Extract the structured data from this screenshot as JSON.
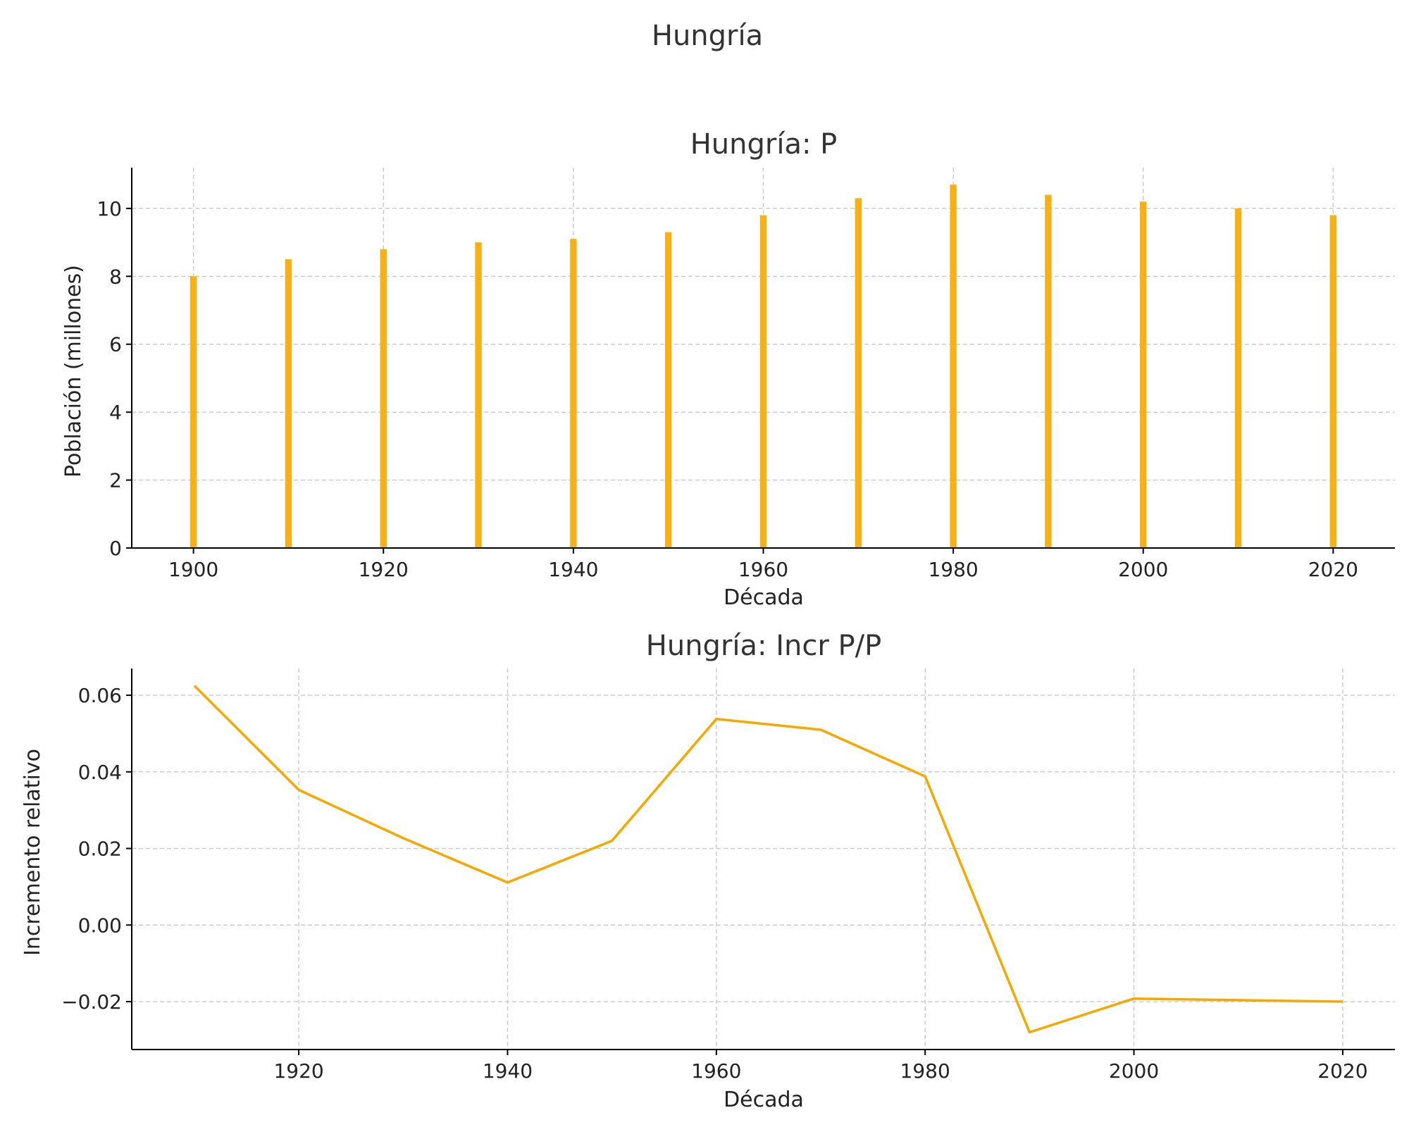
{
  "figure": {
    "suptitle": "Hungría"
  },
  "colors": {
    "series": "#f7b118",
    "line": "#f5a800",
    "grid": "#c8c8c8",
    "axis": "#000000",
    "text": "#333333"
  },
  "chart_data": [
    {
      "type": "bar",
      "title": "Hungría: P",
      "xlabel": "Década",
      "ylabel": "Población (millones)",
      "x": [
        1900,
        1910,
        1920,
        1930,
        1940,
        1950,
        1960,
        1970,
        1980,
        1990,
        2000,
        2010,
        2020
      ],
      "values": [
        8.0,
        8.5,
        8.8,
        9.0,
        9.1,
        9.3,
        9.8,
        10.3,
        10.7,
        10.4,
        10.2,
        10.0,
        9.8
      ],
      "xlim": [
        1893.5,
        2026.5
      ],
      "ylim": [
        0,
        11.2
      ],
      "xticks": [
        1900,
        1920,
        1940,
        1960,
        1980,
        2000,
        2020
      ],
      "yticks": [
        0,
        2,
        4,
        6,
        8,
        10
      ],
      "ytick_labels": [
        "0",
        "2",
        "4",
        "6",
        "8",
        "10"
      ],
      "grid": true
    },
    {
      "type": "line",
      "title": "Hungría: Incr P/P",
      "xlabel": "Década",
      "ylabel": "Incremento relativo",
      "x": [
        1910,
        1920,
        1930,
        1940,
        1950,
        1960,
        1970,
        1980,
        1990,
        2000,
        2010,
        2020
      ],
      "values": [
        0.0625,
        0.0353,
        0.0227,
        0.0111,
        0.022,
        0.0538,
        0.051,
        0.0388,
        -0.028,
        -0.0192,
        -0.0196,
        -0.02
      ],
      "xlim": [
        1904,
        2025
      ],
      "ylim": [
        -0.0325,
        0.067
      ],
      "xticks": [
        1920,
        1940,
        1960,
        1980,
        2000,
        2020
      ],
      "yticks": [
        0.06,
        0.04,
        0.02,
        0.0,
        -0.02
      ],
      "ytick_labels": [
        "0.06",
        "0.04",
        "0.02",
        "0.00",
        "−0.02"
      ],
      "grid": true
    }
  ]
}
